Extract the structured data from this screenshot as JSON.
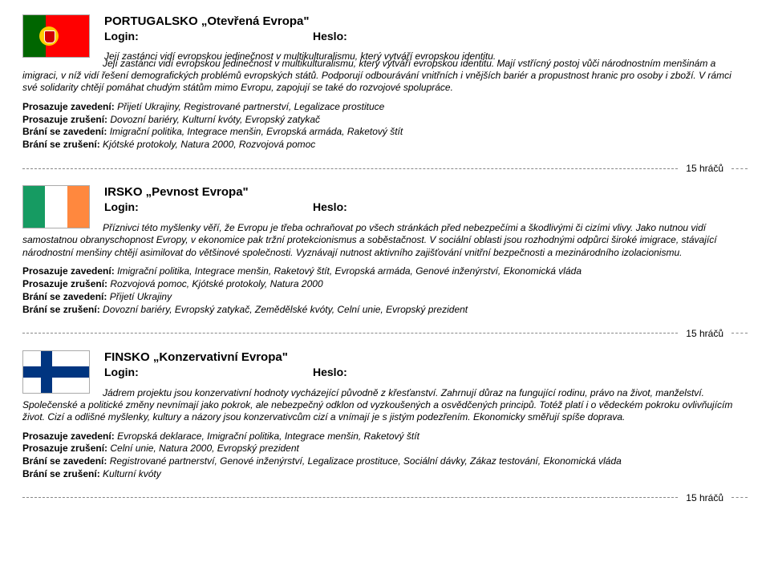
{
  "entries": [
    {
      "title": "PORTUGALSKO „Otevřená Evropa\"",
      "login": "Login:",
      "pass": "Heslo:",
      "desc_lead": "Její zastánci vidí evropskou jedinečnost v multikulturalismu, který vytváří evropskou identitu.",
      "desc_rest": "Mají vstřícný postoj vůči národnostním menšinám a imigraci, v níž vidí řešení demografických problémů evropských států. Podporují odbourávání vnitřních i vnějších bariér a propustnost hranic pro osoby i zboží. V rámci své solidarity chtějí pomáhat chudým státům mimo Evropu, zapojují se také do rozvojové spolupráce.",
      "p1_label": "Prosazuje zavedení:",
      "p1_val": "Přijetí Ukrajiny, Registrované partnerství, Legalizace prostituce",
      "p2_label": "Prosazuje zrušení:",
      "p2_val": "Dovozní bariéry, Kulturní kvóty, Evropský zatykač",
      "p3_label": "Brání se zavedení:",
      "p3_val": "Imigrační politika, Integrace menšin, Evropská armáda, Raketový štít",
      "p4_label": "Brání se zrušení:",
      "p4_val": "Kjótské protokoly, Natura 2000, Rozvojová pomoc",
      "players": "15 hráčů"
    },
    {
      "title": "IRSKO „Pevnost Evropa\"",
      "login": "Login:",
      "pass": "Heslo:",
      "desc_lead": "Příznivci této myšlenky věří, že Evropu je třeba ochraňovat po všech stránkách před nebezpečími a škodlivými či cizími vlivy.",
      "desc_rest": "Jako nutnou vidí samostatnou obranyschopnost Evropy, v ekonomice pak tržní protekcionismus a soběstačnost. V sociální oblasti jsou rozhodnými odpůrci široké imigrace, stávající národnostní menšiny chtějí asimilovat do většinové společnosti. Vyznávají nutnost aktivního zajišťování vnitřní bezpečnosti a mezinárodního izolacionismu.",
      "p1_label": "Prosazuje zavedení:",
      "p1_val": "Imigrační politika, Integrace menšin, Raketový štít, Evropská armáda, Genové inženýrství, Ekonomická vláda",
      "p2_label": "Prosazuje zrušení:",
      "p2_val": "Rozvojová pomoc, Kjótské protokoly, Natura 2000",
      "p3_label": "Brání se zavedení:",
      "p3_val": "Přijetí Ukrajiny",
      "p4_label": "Brání se zrušení:",
      "p4_val": "Dovozní bariéry, Evropský zatykač, Zemědělské kvóty, Celní unie, Evropský prezident",
      "players": "15 hráčů"
    },
    {
      "title": "FINSKO „Konzervativní Evropa\"",
      "login": "Login:",
      "pass": "Heslo:",
      "desc_lead": "Jádrem projektu jsou konzervativní hodnoty vycházející původně z křesťanství.",
      "desc_rest": "Zahrnují důraz na fungující rodinu, právo na život, manželství. Společenské a politické změny nevnímají jako pokrok, ale nebezpečný odklon od vyzkoušených a osvědčených principů. Totéž platí i o vědeckém pokroku ovlivňujícím život. Cizí a odlišné myšlenky, kultury a názory jsou konzervativcům cizí a vnímají je s jistým podezřením. Ekonomicky směřují spíše doprava.",
      "p1_label": "Prosazuje zavedení:",
      "p1_val": "Evropská deklarace, Imigrační politika, Integrace menšin, Raketový štít",
      "p2_label": "Prosazuje zrušení:",
      "p2_val": "Celní unie, Natura 2000, Evropský prezident",
      "p3_label": "Brání se zavedení:",
      "p3_val": "Registrované partnerství, Genové inženýrství, Legalizace prostituce, Sociální dávky, Zákaz testování, Ekonomická vláda",
      "p4_label": "Brání se zrušení:",
      "p4_val": "Kulturní kvóty",
      "players": "15 hráčů"
    }
  ]
}
